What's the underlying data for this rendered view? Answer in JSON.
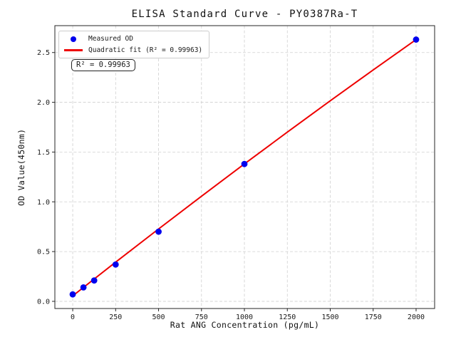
{
  "figure": {
    "background": "#ffffff",
    "spine_color": "#262626",
    "text_color": "#1a1a1a"
  },
  "chart_data": {
    "type": "scatter",
    "title": "ELISA Standard Curve - PY0387Ra-T",
    "xlabel": "Rat ANG Concentration (pg/mL)",
    "ylabel": "OD Value(450nm)",
    "xlim": [
      -104,
      2108
    ],
    "ylim": [
      -0.072,
      2.77
    ],
    "x_ticks": [
      0,
      250,
      500,
      750,
      1000,
      1250,
      1500,
      1750,
      2000
    ],
    "y_ticks": [
      0.0,
      0.5,
      1.0,
      1.5,
      2.0,
      2.5
    ],
    "grid": true,
    "grid_color": "#cfcfcf",
    "legend_position": "upper-left",
    "series": [
      {
        "name": "Measured OD",
        "kind": "scatter",
        "color": "#0000ee",
        "x": [
          0,
          62.5,
          125,
          250,
          500,
          1000,
          2000
        ],
        "y": [
          0.07,
          0.14,
          0.21,
          0.37,
          0.7,
          1.38,
          2.63
        ]
      },
      {
        "name": "Quadratic fit (R² = 0.99963)",
        "kind": "line",
        "color": "#ee0000",
        "x": [
          0,
          250,
          500,
          750,
          1000,
          1250,
          1500,
          1750,
          2000
        ],
        "y": [
          0.055,
          0.394,
          0.727,
          1.056,
          1.381,
          1.7,
          2.015,
          2.325,
          2.63
        ]
      }
    ],
    "annotation": {
      "text": "R² = 0.99963"
    },
    "r_squared": 0.99963
  }
}
